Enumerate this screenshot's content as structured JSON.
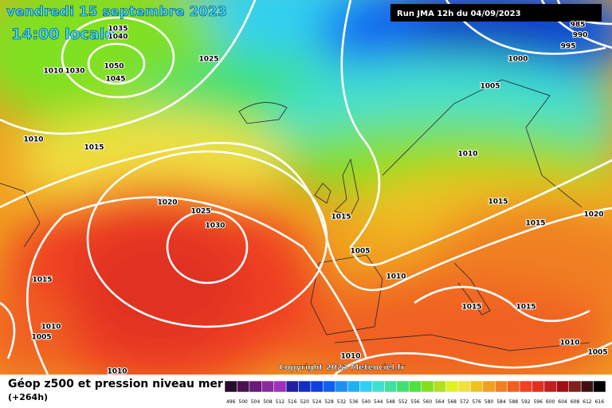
{
  "header": {
    "date": "vendredi 15 septembre 2023",
    "time": "14:00 locale"
  },
  "run": "Run JMA 12h du 04/09/2023",
  "copyright": "Copyright 2023 Meteociel.fr",
  "legend": {
    "title": "Géop z500 et pression niveau mer",
    "lead_time": "(+264h)"
  },
  "isobars": {
    "labels": [
      1035,
      1040,
      1050,
      1045,
      1010,
      1030,
      1025,
      1010,
      1015,
      1020,
      1025,
      1030,
      1015,
      1010,
      1005,
      1010,
      985,
      990,
      995,
      1000,
      1005,
      1010,
      1015,
      1020,
      1015,
      1005,
      1010,
      1015,
      1015,
      1015,
      1010,
      1010,
      1005
    ]
  },
  "color_scale": {
    "values": [
      496,
      500,
      504,
      508,
      512,
      516,
      520,
      524,
      528,
      532,
      536,
      540,
      544,
      548,
      552,
      556,
      560,
      564,
      568,
      572,
      576,
      580,
      584,
      588,
      592,
      596,
      600,
      604,
      608,
      612,
      616
    ],
    "colors": [
      "#2a0a2a",
      "#4a1050",
      "#6a1a7a",
      "#8a2aa0",
      "#a030c0",
      "#2020a0",
      "#1030c0",
      "#1040e0",
      "#1060f0",
      "#2090f0",
      "#20b0f0",
      "#30d0f0",
      "#40e0d0",
      "#40e0a0",
      "#40e070",
      "#50e040",
      "#80e020",
      "#b0e020",
      "#e0f020",
      "#f0e040",
      "#f0c020",
      "#f0a020",
      "#f08020",
      "#f06020",
      "#f04020",
      "#e03020",
      "#c02020",
      "#a01010",
      "#802020",
      "#401010",
      "#000000"
    ]
  }
}
